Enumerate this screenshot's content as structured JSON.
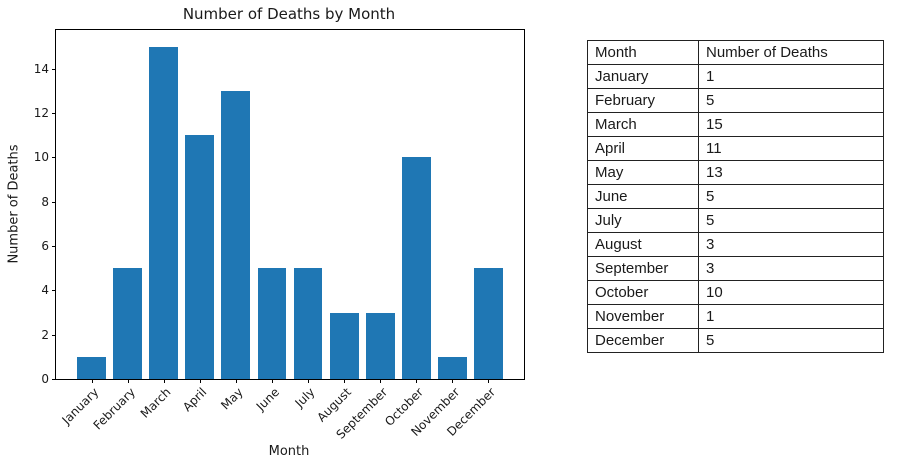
{
  "page": {
    "background": "#ffffff"
  },
  "chart": {
    "title": "Number of Deaths by Month",
    "xlabel": "Month",
    "ylabel": "Number of Deaths",
    "yticks": [
      0,
      2,
      4,
      6,
      8,
      10,
      12,
      14
    ],
    "bar_color": "#1f77b4",
    "axis_color": "#000000",
    "text_color": "#1a1a1a"
  },
  "chart_data": {
    "type": "bar",
    "categories": [
      "January",
      "February",
      "March",
      "April",
      "May",
      "June",
      "July",
      "August",
      "September",
      "October",
      "November",
      "December"
    ],
    "values": [
      1,
      5,
      15,
      11,
      13,
      5,
      5,
      3,
      3,
      10,
      1,
      5
    ],
    "title": "Number of Deaths by Month",
    "xlabel": "Month",
    "ylabel": "Number of Deaths",
    "ylim": [
      0,
      15.75
    ],
    "xlim": [
      -0.99,
      11.99
    ],
    "bar_width": 0.8,
    "grid": false,
    "legend": false,
    "xticklabel_rotation": 45
  },
  "table": {
    "headers": [
      "Month",
      "Number of Deaths"
    ],
    "rows": [
      [
        "January",
        "1"
      ],
      [
        "February",
        "5"
      ],
      [
        "March",
        "15"
      ],
      [
        "April",
        "11"
      ],
      [
        "May",
        "13"
      ],
      [
        "June",
        "5"
      ],
      [
        "July",
        "5"
      ],
      [
        "August",
        "3"
      ],
      [
        "September",
        "3"
      ],
      [
        "October",
        "10"
      ],
      [
        "November",
        "1"
      ],
      [
        "December",
        "5"
      ]
    ]
  }
}
